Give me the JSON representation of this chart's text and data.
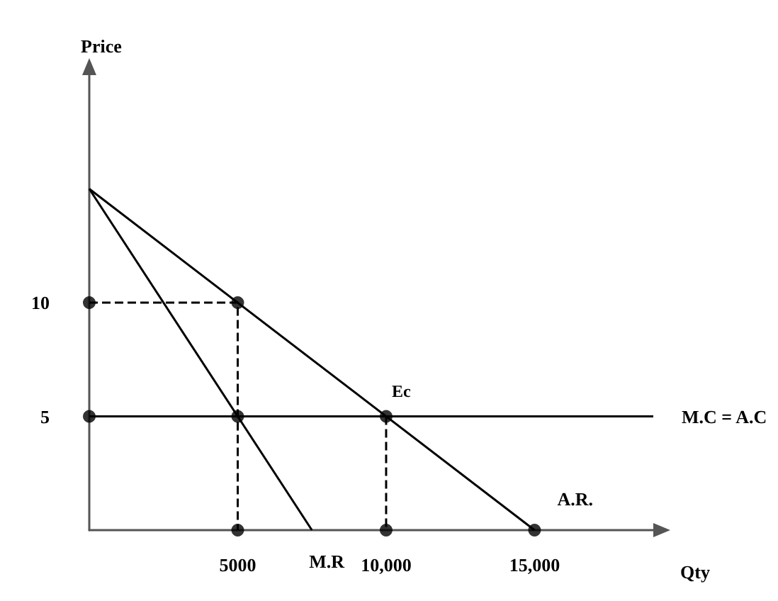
{
  "chart_data": {
    "type": "line",
    "xlabel": "Qty",
    "ylabel": "Price",
    "xlim": [
      0,
      19000
    ],
    "ylim": [
      0,
      20
    ],
    "xticks": [
      {
        "value": 5000,
        "label": "5000"
      },
      {
        "value": 10000,
        "label": "10,000"
      },
      {
        "value": 15000,
        "label": "15,000"
      }
    ],
    "yticks": [
      5,
      10
    ],
    "grid": false,
    "legend": false,
    "series": [
      {
        "name": "A.R.",
        "color": "#000000",
        "x": [
          0,
          15000
        ],
        "values": [
          15,
          0
        ],
        "marker": "none",
        "line_style": "solid"
      },
      {
        "name": "M.R",
        "color": "#000000",
        "x": [
          0,
          7500
        ],
        "values": [
          15,
          0
        ],
        "marker": "none",
        "line_style": "solid"
      },
      {
        "name": "M.C = A.C",
        "color": "#000000",
        "x": [
          0,
          19000
        ],
        "values": [
          5,
          5
        ],
        "marker": "none",
        "line_style": "solid"
      },
      {
        "color": "#000000",
        "x": [
          0,
          5000,
          5000
        ],
        "values": [
          10,
          10,
          0
        ],
        "marker": "none",
        "line_style": "dashed"
      },
      {
        "color": "#000000",
        "x": [
          10000,
          10000
        ],
        "values": [
          5,
          0
        ],
        "marker": "none",
        "line_style": "dashed"
      },
      {
        "type": "scatter",
        "color": "#000000",
        "x": [
          0,
          5000,
          0,
          5000,
          10000,
          5000,
          10000,
          15000
        ],
        "values": [
          10,
          10,
          5,
          5,
          5,
          0,
          0,
          0
        ],
        "marker": "circle"
      }
    ],
    "annotations": [
      {
        "text": "Ec",
        "x": 10000,
        "y": 5
      }
    ]
  }
}
